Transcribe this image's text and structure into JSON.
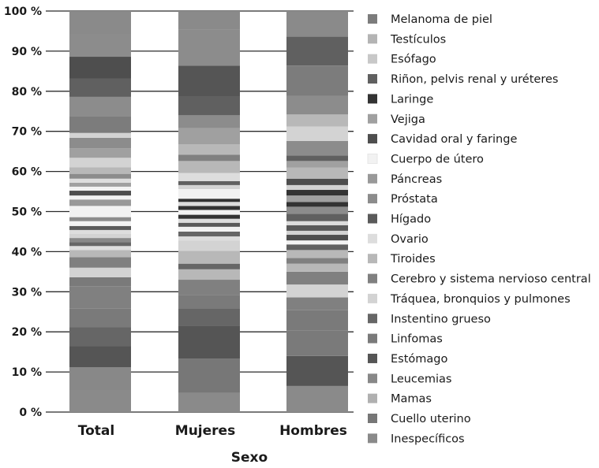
{
  "chart_data": {
    "type": "bar",
    "stacked": true,
    "percent": true,
    "xlabel": "Sexo",
    "ylabel": "",
    "ylim": [
      0,
      100
    ],
    "yticks": [
      "0 %",
      "10 %",
      "20 %",
      "30 %",
      "40 %",
      "50 %",
      "60 %",
      "70 %",
      "80 %",
      "90 %",
      "100 %"
    ],
    "grid": "horizontal",
    "legend": "right",
    "categories": [
      "Total",
      "Mujeres",
      "Hombres"
    ],
    "series": [
      {
        "name": "Inespecíficos",
        "color": "#8a8a8a",
        "values": [
          5.4,
          4.8,
          6.5
        ]
      },
      {
        "name": "Cuello uterino",
        "color": "#777777",
        "values": [
          0,
          8.5,
          0
        ]
      },
      {
        "name": "Mamas",
        "color": "#b0b0b0",
        "values": [
          0,
          0,
          0
        ]
      },
      {
        "name": "Leucemias",
        "color": "#888888",
        "values": [
          5.8,
          0,
          0
        ]
      },
      {
        "name": "Estómago",
        "color": "#555555",
        "values": [
          5.2,
          8.2,
          7.5
        ]
      },
      {
        "name": "Linfomas",
        "color": "#7a7a7a",
        "values": [
          4.8,
          4.0,
          7.0
        ]
      },
      {
        "name": "Instentino grueso",
        "color": "#666666",
        "values": [
          0,
          4.4,
          0
        ]
      },
      {
        "name": "Tráquea, bronquios y pulmones",
        "color": "#d3d3d3",
        "values": [
          0,
          0,
          0
        ]
      },
      {
        "name": "Cerebro y sistema nervioso central",
        "color": "#808080",
        "values": [
          5.6,
          2.8,
          4.4
        ]
      },
      {
        "name": "Tiroides",
        "color": "#b8b8b8",
        "values": [
          4.6,
          0,
          3.2
        ]
      },
      {
        "name": "Ovario",
        "color": "#dddddd",
        "values": [
          0,
          0,
          0
        ]
      },
      {
        "name": "Hígado",
        "color": "#5a5a5a",
        "values": [
          0,
          0,
          0
        ]
      },
      {
        "name": "Próstata",
        "color": "#8c8c8c",
        "values": [
          0,
          0,
          0
        ]
      },
      {
        "name": "Páncreas",
        "color": "#999999",
        "values": [
          0,
          0,
          0
        ]
      },
      {
        "name": "Cuerpo de útero",
        "color": "#f2f2f2",
        "values": [
          0,
          0,
          0
        ]
      },
      {
        "name": "Cavidad oral y faringe",
        "color": "#4e4e4e",
        "values": [
          0,
          0,
          0
        ]
      },
      {
        "name": "Vejiga",
        "color": "#a0a0a0",
        "values": [
          0,
          0,
          0
        ]
      },
      {
        "name": "Laringe",
        "color": "#333333",
        "values": [
          0,
          0,
          0
        ]
      },
      {
        "name": "Riñon, pelvis renal y uréteres",
        "color": "#606060",
        "values": [
          0,
          0,
          0
        ]
      },
      {
        "name": "Esófago",
        "color": "#c8c8c8",
        "values": [
          0,
          0,
          0
        ]
      },
      {
        "name": "Testículos",
        "color": "#b4b4b4",
        "values": [
          0,
          0,
          0
        ]
      },
      {
        "name": "Melanoma de piel",
        "color": "#7c7c7c",
        "values": [
          0,
          0,
          0
        ]
      }
    ],
    "bar_segments": [
      {
        "category": "Total",
        "segments": [
          {
            "series": "Inespecíficos",
            "from": 0,
            "to": 5.4
          },
          {
            "series": "Leucemias",
            "from": 5.4,
            "to": 11.2
          },
          {
            "series": "Estómago",
            "from": 11.2,
            "to": 16.4
          },
          {
            "series": "Instentino grueso",
            "from": 16.4,
            "to": 21.2
          },
          {
            "series": "Linfomas",
            "from": 21.2,
            "to": 25.8
          },
          {
            "series": "Cerebro y sistema nervioso central",
            "from": 25.8,
            "to": 31.4
          },
          {
            "series": "Linfomas",
            "from": 31.4,
            "to": 33.6
          },
          {
            "series": "Tráquea, bronquios y pulmones",
            "from": 33.6,
            "to": 36.0
          },
          {
            "series": "Cerebro y sistema nervioso central",
            "from": 36.0,
            "to": 38.6
          },
          {
            "series": "Tiroides",
            "from": 38.6,
            "to": 40.4
          },
          {
            "series": "Ovario",
            "from": 40.4,
            "to": 41.4
          },
          {
            "series": "Instentino grueso",
            "from": 41.4,
            "to": 42.4
          },
          {
            "series": "Leucemias",
            "from": 42.4,
            "to": 43.4
          },
          {
            "series": "Tráquea, bronquios y pulmones",
            "from": 43.4,
            "to": 44.4
          },
          {
            "series": "Ovario",
            "from": 44.4,
            "to": 45.4
          },
          {
            "series": "Hígado",
            "from": 45.4,
            "to": 46.4
          },
          {
            "series": "Cuerpo de útero",
            "from": 46.4,
            "to": 47.6
          },
          {
            "series": "Próstata",
            "from": 47.6,
            "to": 48.6
          },
          {
            "series": "Cuerpo de útero",
            "from": 48.6,
            "to": 51.4
          },
          {
            "series": "Páncreas",
            "from": 51.4,
            "to": 53.0
          },
          {
            "series": "Cuerpo de útero",
            "from": 53.0,
            "to": 54.0
          },
          {
            "series": "Cavidad oral y faringe",
            "from": 54.0,
            "to": 55.2
          },
          {
            "series": "Cuerpo de útero",
            "from": 55.2,
            "to": 56.2
          },
          {
            "series": "Vejiga",
            "from": 56.2,
            "to": 57.2
          },
          {
            "series": "Ovario",
            "from": 57.2,
            "to": 58.2
          },
          {
            "series": "Próstata",
            "from": 58.2,
            "to": 59.4
          },
          {
            "series": "Tiroides",
            "from": 59.4,
            "to": 61.0
          },
          {
            "series": "Tráquea, bronquios y pulmones",
            "from": 61.0,
            "to": 63.4
          },
          {
            "series": "Vejiga",
            "from": 63.4,
            "to": 65.8
          },
          {
            "series": "Próstata",
            "from": 65.8,
            "to": 68.4
          },
          {
            "series": "Tráquea, bronquios y pulmones",
            "from": 68.4,
            "to": 69.6
          },
          {
            "series": "Melanoma de piel",
            "from": 69.6,
            "to": 73.8
          },
          {
            "series": "Próstata",
            "from": 73.8,
            "to": 78.6
          },
          {
            "series": "Riñon, pelvis renal y uréteres",
            "from": 78.6,
            "to": 83.2
          },
          {
            "series": "Cavidad oral y faringe",
            "from": 83.2,
            "to": 88.6
          },
          {
            "series": "Próstata",
            "from": 88.6,
            "to": 94.4
          },
          {
            "series": "Inespecíficos",
            "from": 94.4,
            "to": 100
          }
        ]
      },
      {
        "category": "Mujeres",
        "segments": [
          {
            "series": "Inespecíficos",
            "from": 0,
            "to": 4.8
          },
          {
            "series": "Cuello uterino",
            "from": 4.8,
            "to": 13.3
          },
          {
            "series": "Estómago",
            "from": 13.3,
            "to": 21.5
          },
          {
            "series": "Instentino grueso",
            "from": 21.5,
            "to": 25.9
          },
          {
            "series": "Linfomas",
            "from": 25.9,
            "to": 29.2
          },
          {
            "series": "Cerebro y sistema nervioso central",
            "from": 29.2,
            "to": 33.0
          },
          {
            "series": "Tiroides",
            "from": 33.0,
            "to": 35.6
          },
          {
            "series": "Instentino grueso",
            "from": 35.6,
            "to": 37.0
          },
          {
            "series": "Tiroides",
            "from": 37.0,
            "to": 40.2
          },
          {
            "series": "Tráquea, bronquios y pulmones",
            "from": 40.2,
            "to": 42.8
          },
          {
            "series": "Ovario",
            "from": 42.8,
            "to": 43.8
          },
          {
            "series": "Instentino grueso",
            "from": 43.8,
            "to": 45.0
          },
          {
            "series": "Cuerpo de útero",
            "from": 45.0,
            "to": 46.2
          },
          {
            "series": "Hígado",
            "from": 46.2,
            "to": 47.2
          },
          {
            "series": "Ovario",
            "from": 47.2,
            "to": 48.2
          },
          {
            "series": "Laringe",
            "from": 48.2,
            "to": 49.2
          },
          {
            "series": "Cuerpo de útero",
            "from": 49.2,
            "to": 50.4
          },
          {
            "series": "Laringe",
            "from": 50.4,
            "to": 51.4
          },
          {
            "series": "Ovario",
            "from": 51.4,
            "to": 52.4
          },
          {
            "series": "Laringe",
            "from": 52.4,
            "to": 53.2
          },
          {
            "series": "Cuerpo de útero",
            "from": 53.2,
            "to": 55.6
          },
          {
            "series": "Tráquea, bronquios y pulmones",
            "from": 55.6,
            "to": 56.6
          },
          {
            "series": "Riñon, pelvis renal y uréteres",
            "from": 56.6,
            "to": 57.6
          },
          {
            "series": "Ovario",
            "from": 57.6,
            "to": 59.6
          },
          {
            "series": "Tiroides",
            "from": 59.6,
            "to": 62.6
          },
          {
            "series": "Cerebro y sistema nervioso central",
            "from": 62.6,
            "to": 64.2
          },
          {
            "series": "Tiroides",
            "from": 64.2,
            "to": 66.8
          },
          {
            "series": "Vejiga",
            "from": 66.8,
            "to": 70.8
          },
          {
            "series": "Próstata",
            "from": 70.8,
            "to": 74.0
          },
          {
            "series": "Riñon, pelvis renal y uréteres",
            "from": 74.0,
            "to": 78.6
          },
          {
            "series": "Estómago",
            "from": 78.6,
            "to": 86.4
          },
          {
            "series": "Próstata",
            "from": 86.4,
            "to": 95.4
          },
          {
            "series": "Inespecíficos",
            "from": 95.4,
            "to": 100
          }
        ]
      },
      {
        "category": "Hombres",
        "segments": [
          {
            "series": "Inespecíficos",
            "from": 0,
            "to": 6.5
          },
          {
            "series": "Estómago",
            "from": 6.5,
            "to": 14.0
          },
          {
            "series": "Linfomas",
            "from": 14.0,
            "to": 20.4
          },
          {
            "series": "Linfomas",
            "from": 20.4,
            "to": 25.4
          },
          {
            "series": "Cerebro y sistema nervioso central",
            "from": 25.4,
            "to": 28.6
          },
          {
            "series": "Tráquea, bronquios y pulmones",
            "from": 28.6,
            "to": 31.8
          },
          {
            "series": "Cerebro y sistema nervioso central",
            "from": 31.8,
            "to": 35.0
          },
          {
            "series": "Tiroides",
            "from": 35.0,
            "to": 37.0
          },
          {
            "series": "Cerebro y sistema nervioso central",
            "from": 37.0,
            "to": 38.4
          },
          {
            "series": "Tiroides",
            "from": 38.4,
            "to": 40.4
          },
          {
            "series": "Riñon, pelvis renal y uréteres",
            "from": 40.4,
            "to": 41.8
          },
          {
            "series": "Cuerpo de útero",
            "from": 41.8,
            "to": 42.8
          },
          {
            "series": "Cavidad oral y faringe",
            "from": 42.8,
            "to": 44.2
          },
          {
            "series": "Tráquea, bronquios y pulmones",
            "from": 44.2,
            "to": 45.2
          },
          {
            "series": "Hígado",
            "from": 45.2,
            "to": 46.6
          },
          {
            "series": "Ovario",
            "from": 46.6,
            "to": 47.6
          },
          {
            "series": "Riñon, pelvis renal y uréteres",
            "from": 47.6,
            "to": 49.4
          },
          {
            "series": "Próstata",
            "from": 49.4,
            "to": 51.2
          },
          {
            "series": "Laringe",
            "from": 51.2,
            "to": 52.4
          },
          {
            "series": "Vejiga",
            "from": 52.4,
            "to": 54.0
          },
          {
            "series": "Laringe",
            "from": 54.0,
            "to": 55.4
          },
          {
            "series": "Tráquea, bronquios y pulmones",
            "from": 55.4,
            "to": 56.6
          },
          {
            "series": "Cavidad oral y faringe",
            "from": 56.6,
            "to": 58.2
          },
          {
            "series": "Tiroides",
            "from": 58.2,
            "to": 61.0
          },
          {
            "series": "Vejiga",
            "from": 61.0,
            "to": 62.6
          },
          {
            "series": "Riñon, pelvis renal y uréteres",
            "from": 62.6,
            "to": 64.0
          },
          {
            "series": "Próstata",
            "from": 64.0,
            "to": 67.6
          },
          {
            "series": "Tráquea, bronquios y pulmones",
            "from": 67.6,
            "to": 71.2
          },
          {
            "series": "Tiroides",
            "from": 71.2,
            "to": 74.2
          },
          {
            "series": "Próstata",
            "from": 74.2,
            "to": 78.8
          },
          {
            "series": "Melanoma de piel",
            "from": 78.8,
            "to": 86.4
          },
          {
            "series": "Riñon, pelvis renal y uréteres",
            "from": 86.4,
            "to": 93.6
          },
          {
            "series": "Inespecíficos",
            "from": 93.6,
            "to": 100
          }
        ]
      }
    ]
  },
  "legend_entries": [
    {
      "label": "Melanoma de piel",
      "color": "#7c7c7c"
    },
    {
      "label": "Testículos",
      "color": "#b4b4b4"
    },
    {
      "label": "Esófago",
      "color": "#c8c8c8"
    },
    {
      "label": "Riñon, pelvis renal y uréteres",
      "color": "#606060"
    },
    {
      "label": "Laringe",
      "color": "#333333"
    },
    {
      "label": "Vejiga",
      "color": "#a0a0a0"
    },
    {
      "label": "Cavidad oral y faringe",
      "color": "#4e4e4e"
    },
    {
      "label": "Cuerpo de útero",
      "color": "#f2f2f2"
    },
    {
      "label": "Páncreas",
      "color": "#999999"
    },
    {
      "label": "Próstata",
      "color": "#8c8c8c"
    },
    {
      "label": "Hígado",
      "color": "#5a5a5a"
    },
    {
      "label": "Ovario",
      "color": "#dddddd"
    },
    {
      "label": "Tiroides",
      "color": "#b8b8b8"
    },
    {
      "label": "Cerebro y sistema nervioso central",
      "color": "#808080"
    },
    {
      "label": "Tráquea, bronquios y pulmones",
      "color": "#d3d3d3"
    },
    {
      "label": "Instentino grueso",
      "color": "#666666"
    },
    {
      "label": "Linfomas",
      "color": "#7a7a7a"
    },
    {
      "label": "Estómago",
      "color": "#555555"
    },
    {
      "label": "Leucemias",
      "color": "#888888"
    },
    {
      "label": "Mamas",
      "color": "#b0b0b0"
    },
    {
      "label": "Cuello uterino",
      "color": "#777777"
    },
    {
      "label": "Inespecíficos",
      "color": "#8a8a8a"
    }
  ]
}
